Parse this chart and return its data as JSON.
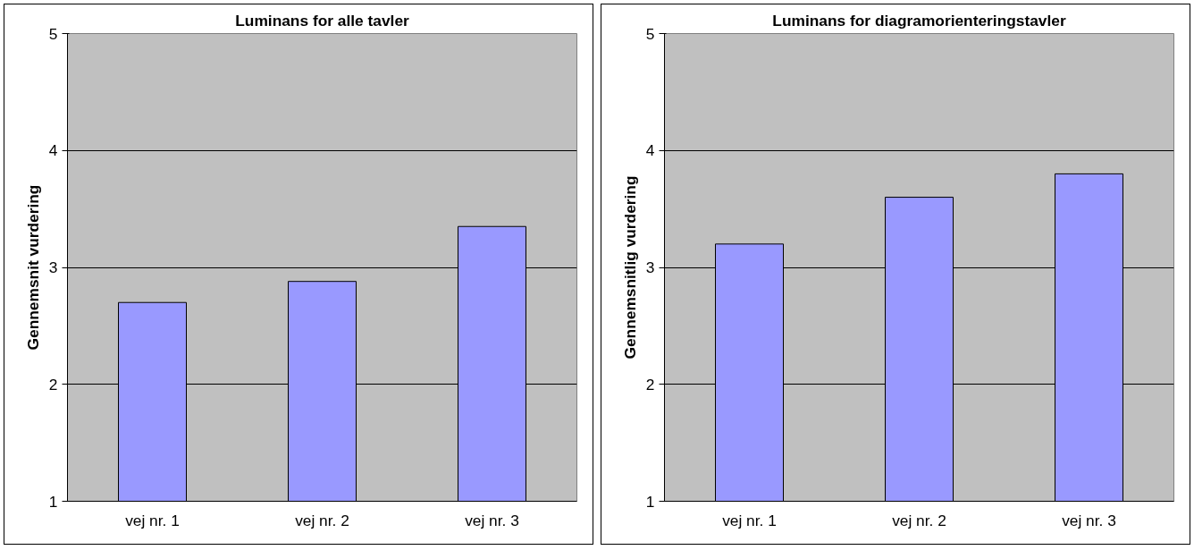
{
  "chart_data": [
    {
      "type": "bar",
      "title": "Luminans for alle tavler",
      "ylabel": "Gennemsnit vurdering",
      "categories": [
        "vej nr. 1",
        "vej nr. 2",
        "vej nr. 3"
      ],
      "series": [
        {
          "color": "#9999ff",
          "values": [
            2.7,
            2.88,
            3.35
          ]
        }
      ],
      "ylim": [
        1,
        5
      ],
      "yticks": [
        1,
        2,
        3,
        4,
        5
      ],
      "grid": "y"
    },
    {
      "type": "bar",
      "title": "Luminans for diagramorienteringstavler",
      "ylabel": "Gennemsnitlig vurdering",
      "categories": [
        "vej nr. 1",
        "vej nr. 2",
        "vej nr. 3"
      ],
      "series": [
        {
          "color": "#9999ff",
          "values": [
            3.2,
            3.6,
            3.8
          ]
        }
      ],
      "ylim": [
        1,
        5
      ],
      "yticks": [
        1,
        2,
        3,
        4,
        5
      ],
      "grid": "y"
    }
  ]
}
